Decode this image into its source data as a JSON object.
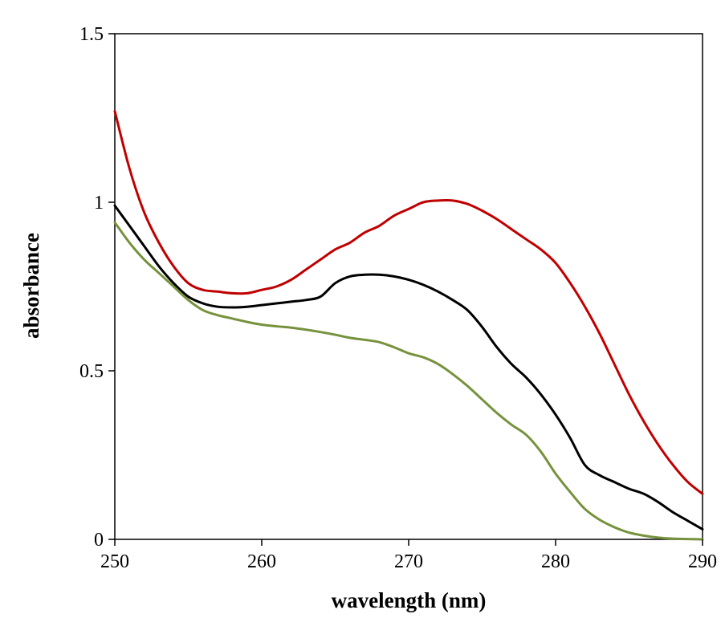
{
  "chart_data": {
    "type": "line",
    "title": "",
    "xlabel": "wavelength (nm)",
    "ylabel": "absorbance",
    "xlim": [
      250,
      290
    ],
    "ylim": [
      0,
      1.5
    ],
    "x_ticks": [
      250,
      260,
      270,
      280,
      290
    ],
    "x_tick_labels": [
      "250",
      "260",
      "270",
      "280",
      "290"
    ],
    "y_ticks": [
      0,
      0.5,
      1,
      1.5
    ],
    "y_tick_labels": [
      "0",
      "0.5",
      "1",
      "1.5"
    ],
    "grid": false,
    "legend": "none",
    "series": [
      {
        "color": "#c00000",
        "x": [
          250,
          251,
          252,
          253,
          254,
          255,
          256,
          257,
          258,
          259,
          260,
          261,
          262,
          263,
          264,
          265,
          266,
          267,
          268,
          269,
          270,
          271,
          272,
          273,
          274,
          275,
          276,
          277,
          278,
          279,
          280,
          281,
          282,
          283,
          284,
          285,
          286,
          287,
          288,
          289,
          290
        ],
        "y": [
          1.27,
          1.1,
          0.97,
          0.88,
          0.81,
          0.76,
          0.74,
          0.735,
          0.73,
          0.73,
          0.74,
          0.75,
          0.77,
          0.8,
          0.83,
          0.86,
          0.88,
          0.91,
          0.93,
          0.96,
          0.98,
          1.0,
          1.005,
          1.005,
          0.995,
          0.975,
          0.95,
          0.92,
          0.89,
          0.86,
          0.82,
          0.76,
          0.69,
          0.61,
          0.52,
          0.43,
          0.35,
          0.28,
          0.22,
          0.17,
          0.135
        ]
      },
      {
        "color": "#000000",
        "x": [
          250,
          251,
          252,
          253,
          254,
          255,
          256,
          257,
          258,
          259,
          260,
          261,
          262,
          263,
          264,
          265,
          266,
          267,
          268,
          269,
          270,
          271,
          272,
          273,
          274,
          275,
          276,
          277,
          278,
          279,
          280,
          281,
          282,
          283,
          284,
          285,
          286,
          287,
          288,
          289,
          290
        ],
        "y": [
          0.99,
          0.93,
          0.87,
          0.81,
          0.76,
          0.72,
          0.7,
          0.69,
          0.688,
          0.69,
          0.695,
          0.7,
          0.705,
          0.71,
          0.72,
          0.76,
          0.78,
          0.785,
          0.785,
          0.78,
          0.77,
          0.755,
          0.735,
          0.71,
          0.68,
          0.63,
          0.57,
          0.52,
          0.48,
          0.43,
          0.37,
          0.3,
          0.22,
          0.19,
          0.17,
          0.15,
          0.135,
          0.11,
          0.08,
          0.055,
          0.03
        ]
      },
      {
        "color": "#76923c",
        "x": [
          250,
          251,
          252,
          253,
          254,
          255,
          256,
          257,
          258,
          259,
          260,
          261,
          262,
          263,
          264,
          265,
          266,
          267,
          268,
          269,
          270,
          271,
          272,
          273,
          274,
          275,
          276,
          277,
          278,
          279,
          280,
          281,
          282,
          283,
          284,
          285,
          286,
          287,
          288,
          289,
          290
        ],
        "y": [
          0.94,
          0.88,
          0.83,
          0.79,
          0.75,
          0.71,
          0.68,
          0.665,
          0.655,
          0.645,
          0.637,
          0.632,
          0.628,
          0.622,
          0.615,
          0.607,
          0.598,
          0.592,
          0.585,
          0.57,
          0.552,
          0.54,
          0.52,
          0.49,
          0.455,
          0.415,
          0.375,
          0.34,
          0.31,
          0.26,
          0.195,
          0.14,
          0.09,
          0.058,
          0.036,
          0.02,
          0.011,
          0.005,
          0.002,
          0.001,
          0.0
        ]
      }
    ]
  }
}
